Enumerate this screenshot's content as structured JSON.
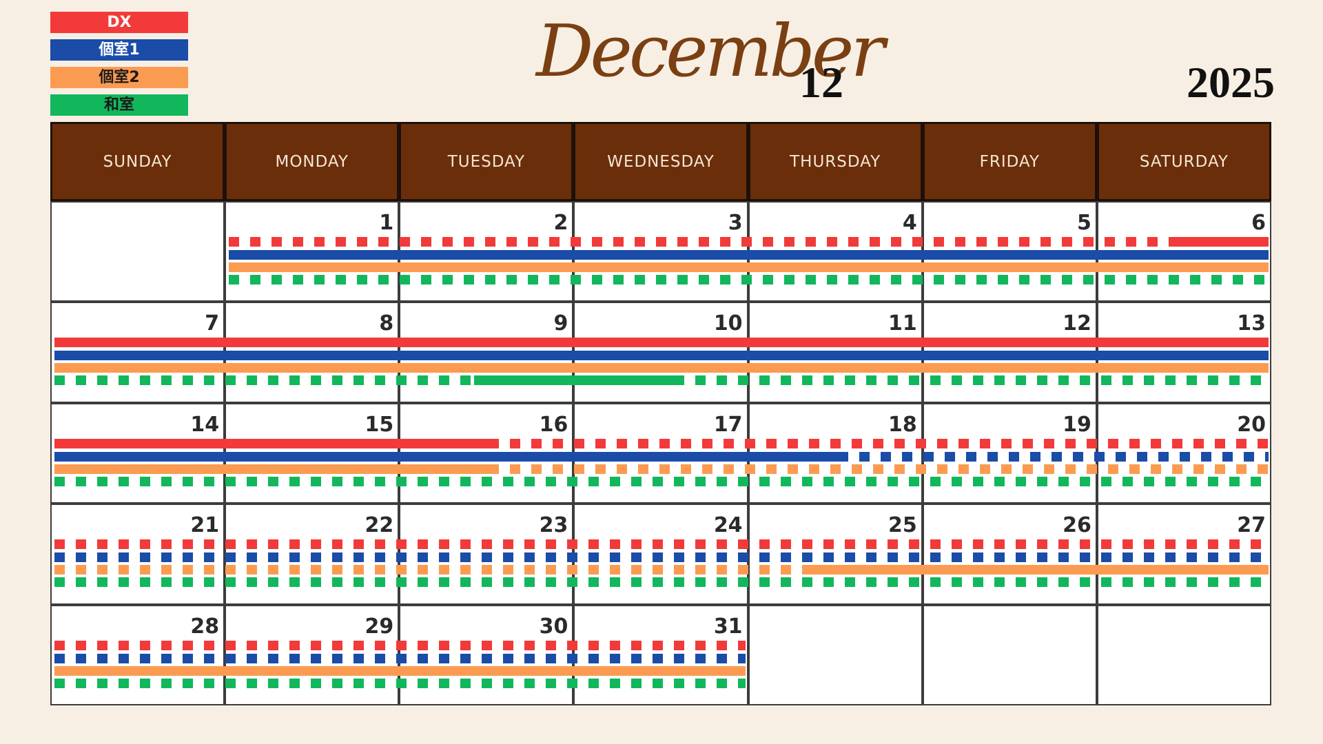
{
  "legend": [
    {
      "label": "DX",
      "color": "#f23a3a"
    },
    {
      "label": "個室1",
      "color": "#1a4ca8"
    },
    {
      "label": "個室2",
      "color": "#fb9b52"
    },
    {
      "label": "和室",
      "color": "#12b75c"
    }
  ],
  "title": {
    "month": "December",
    "month_number": "12",
    "year": "2025"
  },
  "weekdays": [
    "SUNDAY",
    "MONDAY",
    "TUESDAY",
    "WEDNESDAY",
    "THURSDAY",
    "FRIDAY",
    "SATURDAY"
  ],
  "weeks": [
    [
      "",
      "1",
      "2",
      "3",
      "4",
      "5",
      "6"
    ],
    [
      "7",
      "8",
      "9",
      "10",
      "11",
      "12",
      "13"
    ],
    [
      "14",
      "15",
      "16",
      "17",
      "18",
      "19",
      "20"
    ],
    [
      "21",
      "22",
      "23",
      "24",
      "25",
      "26",
      "27"
    ],
    [
      "28",
      "29",
      "30",
      "31",
      "",
      "",
      ""
    ]
  ],
  "bookings": [
    {
      "room": "DX",
      "week": 0,
      "segments": [
        {
          "from": "1",
          "to": "6",
          "style": "dotted"
        },
        {
          "from": "6",
          "to": "6",
          "style": "solid",
          "partial": "second-half"
        }
      ]
    },
    {
      "room": "個室1",
      "week": 0,
      "segments": [
        {
          "from": "1",
          "to": "6",
          "style": "solid"
        }
      ]
    },
    {
      "room": "個室2",
      "week": 0,
      "segments": [
        {
          "from": "1",
          "to": "6",
          "style": "solid"
        }
      ]
    },
    {
      "room": "和室",
      "week": 0,
      "segments": [
        {
          "from": "1",
          "to": "6",
          "style": "dotted"
        }
      ]
    },
    {
      "room": "DX",
      "week": 1,
      "segments": [
        {
          "from": "7",
          "to": "13",
          "style": "solid"
        }
      ]
    },
    {
      "room": "個室1",
      "week": 1,
      "segments": [
        {
          "from": "7",
          "to": "13",
          "style": "solid"
        }
      ]
    },
    {
      "room": "個室2",
      "week": 1,
      "segments": [
        {
          "from": "7",
          "to": "13",
          "style": "solid"
        }
      ]
    },
    {
      "room": "和室",
      "week": 1,
      "segments": [
        {
          "from": "7",
          "to": "13",
          "style": "dotted"
        },
        {
          "from": "9",
          "to": "10",
          "style": "solid",
          "partial": "mid"
        }
      ]
    },
    {
      "room": "DX",
      "week": 2,
      "segments": [
        {
          "from": "14",
          "to": "16",
          "style": "solid",
          "partial": "to-mid"
        },
        {
          "from": "16",
          "to": "20",
          "style": "dotted"
        }
      ]
    },
    {
      "room": "個室1",
      "week": 2,
      "segments": [
        {
          "from": "14",
          "to": "18",
          "style": "solid",
          "partial": "to-mid"
        },
        {
          "from": "18",
          "to": "20",
          "style": "dotted"
        }
      ]
    },
    {
      "room": "個室2",
      "week": 2,
      "segments": [
        {
          "from": "14",
          "to": "16",
          "style": "solid",
          "partial": "to-mid"
        },
        {
          "from": "16",
          "to": "20",
          "style": "dotted"
        }
      ]
    },
    {
      "room": "和室",
      "week": 2,
      "segments": [
        {
          "from": "14",
          "to": "20",
          "style": "dotted"
        }
      ]
    },
    {
      "room": "DX",
      "week": 3,
      "segments": [
        {
          "from": "21",
          "to": "27",
          "style": "dotted"
        }
      ]
    },
    {
      "room": "個室1",
      "week": 3,
      "segments": [
        {
          "from": "21",
          "to": "27",
          "style": "dotted"
        }
      ]
    },
    {
      "room": "個室2",
      "week": 3,
      "segments": [
        {
          "from": "21",
          "to": "25",
          "style": "dotted"
        },
        {
          "from": "25",
          "to": "27",
          "style": "solid",
          "partial": "from-mid"
        }
      ]
    },
    {
      "room": "和室",
      "week": 3,
      "segments": [
        {
          "from": "21",
          "to": "27",
          "style": "dotted"
        }
      ]
    },
    {
      "room": "DX",
      "week": 4,
      "segments": [
        {
          "from": "28",
          "to": "31",
          "style": "dotted"
        }
      ]
    },
    {
      "room": "個室1",
      "week": 4,
      "segments": [
        {
          "from": "28",
          "to": "31",
          "style": "dotted"
        }
      ]
    },
    {
      "room": "個室2",
      "week": 4,
      "segments": [
        {
          "from": "28",
          "to": "31",
          "style": "solid"
        }
      ]
    },
    {
      "room": "和室",
      "week": 4,
      "segments": [
        {
          "from": "28",
          "to": "31",
          "style": "dotted"
        }
      ]
    }
  ]
}
